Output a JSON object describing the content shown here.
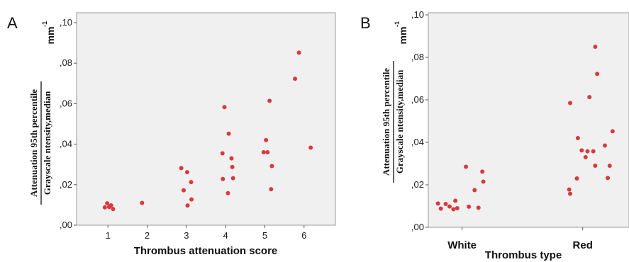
{
  "chart_data": [
    {
      "panel": "A",
      "type": "scatter",
      "xlabel": "Thrombus attenuation score",
      "ylabel": {
        "numerator": "Attenuation 95th percentile",
        "denominator": "Grayscale ntensity,median",
        "unit": "mm",
        "unit_exp": "-1"
      },
      "xlim": [
        0.2,
        6.8
      ],
      "ylim": [
        0,
        0.1
      ],
      "xticks": [
        1,
        2,
        3,
        4,
        5,
        6
      ],
      "xtick_labels": [
        "1",
        "2",
        "3",
        "4",
        "5",
        "6"
      ],
      "yticks": [
        0,
        0.02,
        0.04,
        0.06,
        0.08,
        0.1
      ],
      "ytick_labels": [
        ",00",
        ",02",
        ",04",
        ",06",
        ",08",
        ",10"
      ],
      "grid": false,
      "marker_color": "#d9383e",
      "points": [
        {
          "x": 0.92,
          "y": 0.0088
        },
        {
          "x": 0.98,
          "y": 0.0108
        },
        {
          "x": 1.03,
          "y": 0.009
        },
        {
          "x": 1.08,
          "y": 0.0098
        },
        {
          "x": 1.13,
          "y": 0.008
        },
        {
          "x": 1.87,
          "y": 0.011
        },
        {
          "x": 2.87,
          "y": 0.0282
        },
        {
          "x": 2.93,
          "y": 0.0172
        },
        {
          "x": 3.02,
          "y": 0.0262
        },
        {
          "x": 3.03,
          "y": 0.0097
        },
        {
          "x": 3.12,
          "y": 0.0213
        },
        {
          "x": 3.13,
          "y": 0.0127
        },
        {
          "x": 3.92,
          "y": 0.0355
        },
        {
          "x": 3.93,
          "y": 0.0228
        },
        {
          "x": 3.97,
          "y": 0.0583
        },
        {
          "x": 4.06,
          "y": 0.0158
        },
        {
          "x": 4.08,
          "y": 0.0452
        },
        {
          "x": 4.15,
          "y": 0.033
        },
        {
          "x": 4.17,
          "y": 0.0287
        },
        {
          "x": 4.19,
          "y": 0.0232
        },
        {
          "x": 4.97,
          "y": 0.036
        },
        {
          "x": 5.03,
          "y": 0.042
        },
        {
          "x": 5.07,
          "y": 0.036
        },
        {
          "x": 5.12,
          "y": 0.0614
        },
        {
          "x": 5.16,
          "y": 0.0178
        },
        {
          "x": 5.18,
          "y": 0.0292
        },
        {
          "x": 5.77,
          "y": 0.0723
        },
        {
          "x": 5.87,
          "y": 0.0852
        },
        {
          "x": 6.17,
          "y": 0.0383
        }
      ]
    },
    {
      "panel": "B",
      "type": "scatter",
      "xlabel": "Thrombus type",
      "ylabel": {
        "numerator": "Attenuation 95th percentile",
        "denominator": "Grayscale ntensity,median",
        "unit": "mm",
        "unit_exp": "-1"
      },
      "xlim": [
        0.15,
        2.23
      ],
      "ylim": [
        0,
        0.1
      ],
      "xticks": [
        0.5,
        1.75
      ],
      "xtick_labels": [
        "White",
        "Red"
      ],
      "yticks": [
        0,
        0.02,
        0.04,
        0.06,
        0.08,
        0.1
      ],
      "ytick_labels": [
        ",00",
        ",02",
        ",04",
        ",06",
        ",08",
        ",10"
      ],
      "grid": false,
      "marker_color": "#d9383e",
      "points": [
        {
          "x": 0.25,
          "y": 0.0112
        },
        {
          "x": 0.28,
          "y": 0.0088
        },
        {
          "x": 0.33,
          "y": 0.011
        },
        {
          "x": 0.37,
          "y": 0.0098
        },
        {
          "x": 0.41,
          "y": 0.0085
        },
        {
          "x": 0.43,
          "y": 0.0125
        },
        {
          "x": 0.45,
          "y": 0.009
        },
        {
          "x": 0.54,
          "y": 0.0285
        },
        {
          "x": 0.57,
          "y": 0.0097
        },
        {
          "x": 0.63,
          "y": 0.0175
        },
        {
          "x": 0.67,
          "y": 0.0092
        },
        {
          "x": 0.71,
          "y": 0.0262
        },
        {
          "x": 0.72,
          "y": 0.0215
        },
        {
          "x": 1.61,
          "y": 0.0178
        },
        {
          "x": 1.62,
          "y": 0.0158
        },
        {
          "x": 1.62,
          "y": 0.0585
        },
        {
          "x": 1.69,
          "y": 0.023
        },
        {
          "x": 1.7,
          "y": 0.042
        },
        {
          "x": 1.74,
          "y": 0.0362
        },
        {
          "x": 1.78,
          "y": 0.033
        },
        {
          "x": 1.8,
          "y": 0.0358
        },
        {
          "x": 1.82,
          "y": 0.0613
        },
        {
          "x": 1.86,
          "y": 0.0358
        },
        {
          "x": 1.88,
          "y": 0.029
        },
        {
          "x": 1.88,
          "y": 0.085
        },
        {
          "x": 1.9,
          "y": 0.0722
        },
        {
          "x": 1.98,
          "y": 0.0385
        },
        {
          "x": 2.01,
          "y": 0.0232
        },
        {
          "x": 2.03,
          "y": 0.029
        },
        {
          "x": 2.06,
          "y": 0.0452
        }
      ]
    }
  ]
}
